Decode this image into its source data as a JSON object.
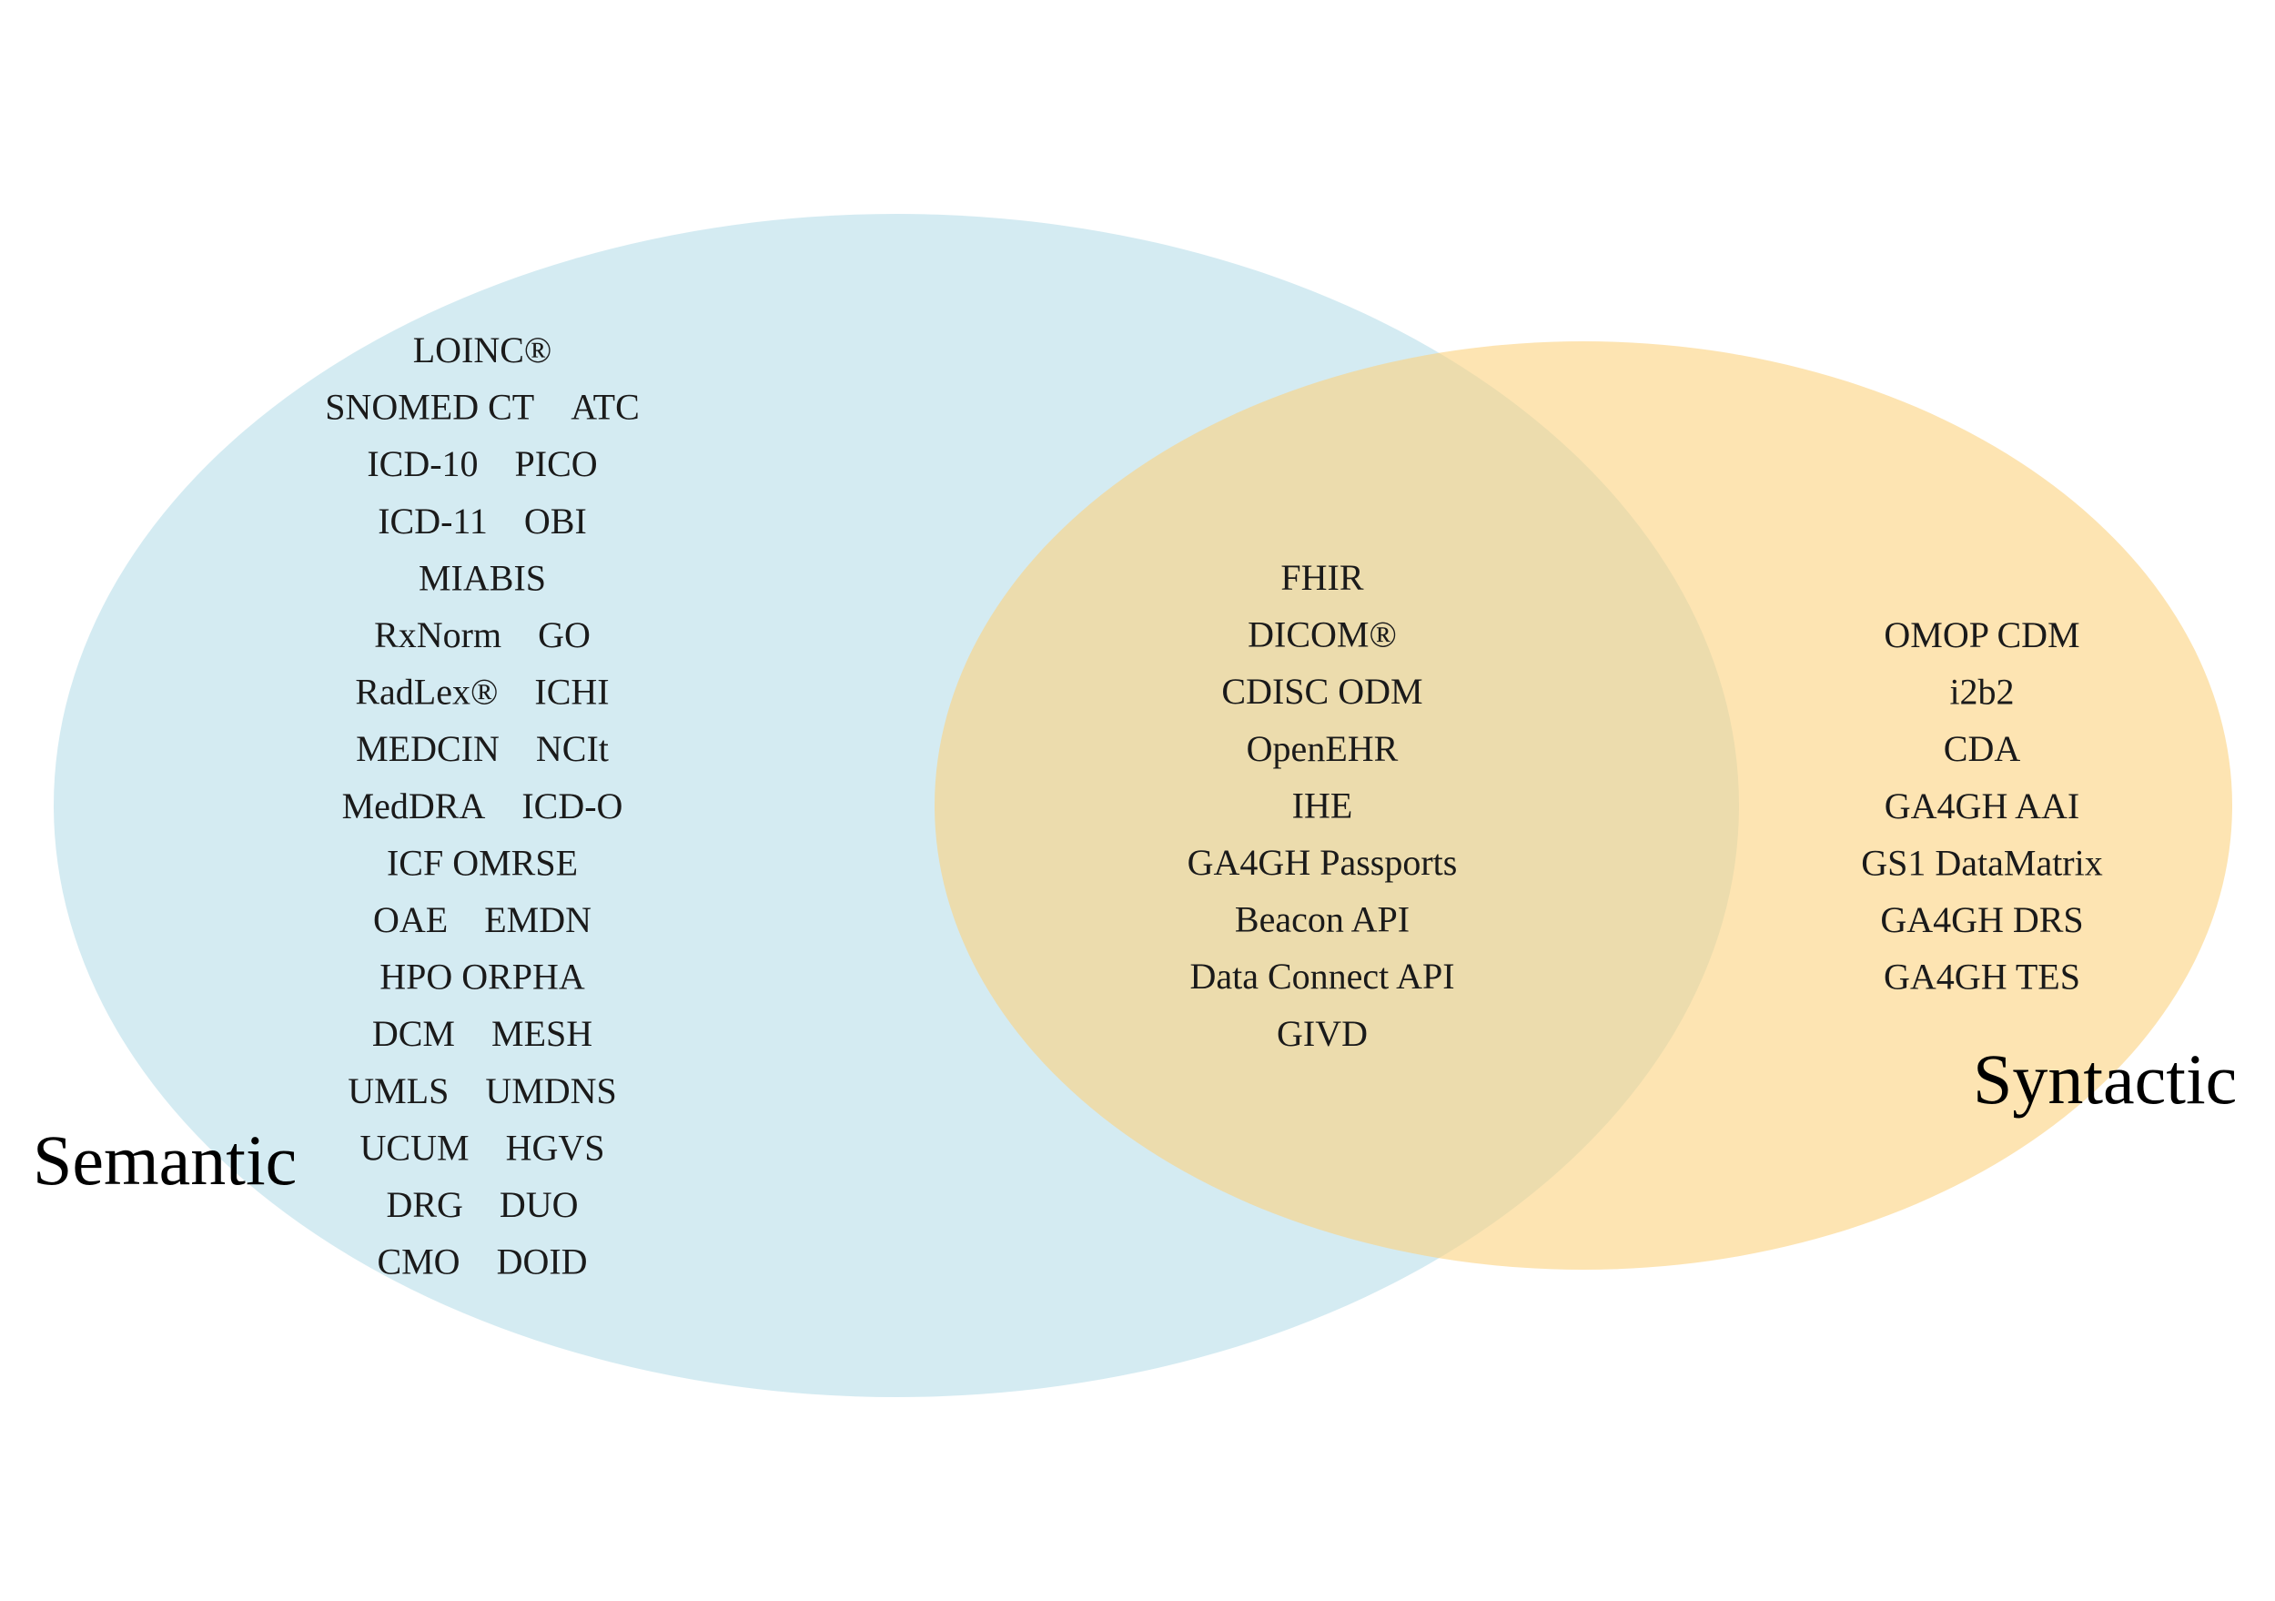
{
  "colors": {
    "semantic_fill": "#a9d8e6",
    "syntactic_fill": "#fbd27e",
    "text": "#1a1a1a"
  },
  "sets": {
    "semantic": {
      "label": "Semantic",
      "rows": [
        [
          "LOINC®"
        ],
        [
          "SNOMED CT",
          "ATC"
        ],
        [
          "ICD-10",
          "PICO"
        ],
        [
          "ICD-11",
          "OBI"
        ],
        [
          "MIABIS"
        ],
        [
          "RxNorm",
          "GO"
        ],
        [
          "RadLex®",
          "ICHI"
        ],
        [
          "MEDCIN",
          "NCIt"
        ],
        [
          "MedDRA",
          "ICD-O"
        ],
        [
          "ICF OMRSE"
        ],
        [
          "OAE",
          "EMDN"
        ],
        [
          "HPO ORPHA"
        ],
        [
          "DCM",
          "MESH"
        ],
        [
          "UMLS",
          "UMDNS"
        ],
        [
          "UCUM",
          "HGVS"
        ],
        [
          "DRG",
          "DUO"
        ],
        [
          "CMO",
          "DOID"
        ]
      ]
    },
    "intersection": {
      "items": [
        "FHIR",
        "DICOM®",
        "CDISC ODM",
        "OpenEHR",
        "IHE",
        "GA4GH Passports",
        "Beacon API",
        "Data Connect API",
        "GIVD"
      ]
    },
    "syntactic": {
      "label": "Syntactic",
      "items": [
        "OMOP CDM",
        "i2b2",
        "CDA",
        "GA4GH AAI",
        "GS1 DataMatrix",
        "GA4GH DRS",
        "GA4GH TES"
      ]
    }
  }
}
